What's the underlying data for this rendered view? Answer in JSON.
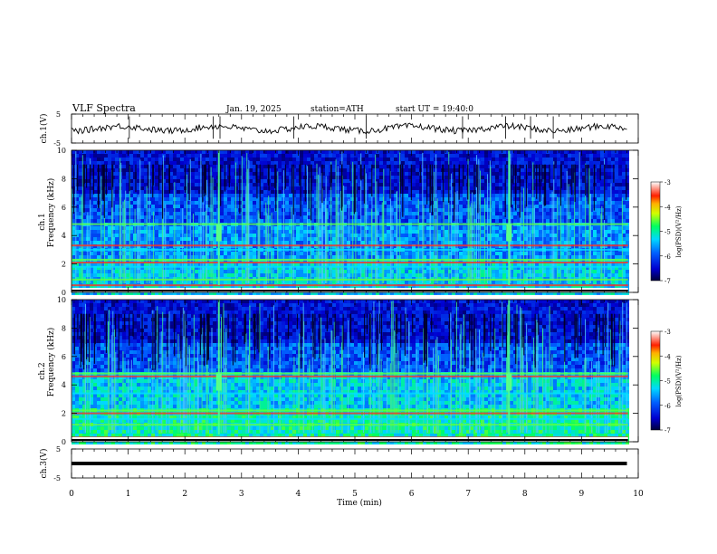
{
  "header": {
    "title": "VLF  Spectra",
    "date": "Jan. 19, 2025",
    "station": "station=ATH",
    "start": "start  UT  =   19:40:0"
  },
  "chart_data": {
    "type": "heatmap",
    "x_axis": {
      "label": "Time  (min)",
      "range": [
        0,
        10
      ],
      "ticks": [
        0,
        1,
        2,
        3,
        4,
        5,
        6,
        7,
        8,
        9,
        10
      ],
      "data_extent": [
        0,
        9.82
      ]
    },
    "panels": [
      {
        "id": "ch1_waveform",
        "type": "line",
        "ylabel": "ch.1(V)",
        "ylim": [
          -5,
          5
        ],
        "yticks": [
          "5",
          "-5"
        ],
        "trace_level": 0,
        "trace_color": "#000000",
        "spike_times": [
          1.02,
          2.5,
          2.62,
          3.92,
          5.2,
          6.9,
          7.66,
          8.1,
          8.5
        ]
      },
      {
        "id": "ch1_spectrogram",
        "type": "heatmap",
        "ylabel_line1": "ch.1",
        "ylabel_line2": "Frequency (kHz)",
        "ylim": [
          0,
          10
        ],
        "yticks": [
          "0",
          "2",
          "4",
          "6",
          "8",
          "10"
        ],
        "line_bands_khz": [
          0.5,
          0.9,
          1.8,
          2.1,
          2.3,
          3.0,
          3.3,
          4.8
        ],
        "bright_burst_times": [
          2.6,
          7.72
        ],
        "colorbar": {
          "label": "log(PSD)(V²/Hz)",
          "range": [
            -7,
            -3
          ],
          "ticks": [
            "-3",
            "-4",
            "-5",
            "-6",
            "-7"
          ]
        }
      },
      {
        "id": "ch2_spectrogram",
        "type": "heatmap",
        "ylabel_line1": "ch.2",
        "ylabel_line2": "Frequency (kHz)",
        "ylim": [
          0,
          10
        ],
        "yticks": [
          "0",
          "2",
          "4",
          "6",
          "8",
          "10"
        ],
        "line_bands_khz": [
          0.3,
          1.2,
          1.6,
          2.0,
          2.2,
          3.4,
          4.6,
          4.8
        ],
        "bright_burst_times": [
          2.6,
          7.72
        ],
        "colorbar": {
          "label": "log(PSD)(V²/Hz)",
          "range": [
            -7,
            -3
          ],
          "ticks": [
            "-3",
            "-4",
            "-5",
            "-6",
            "-7"
          ]
        }
      },
      {
        "id": "ch3_waveform",
        "type": "line",
        "ylabel": "ch.3(V)",
        "ylim": [
          -5,
          5
        ],
        "yticks": [
          "5",
          "-5"
        ],
        "trace_level": 0,
        "trace_color": "#000000"
      }
    ]
  }
}
